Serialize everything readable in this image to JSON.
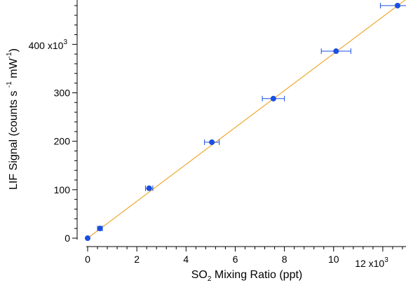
{
  "chart_data": {
    "type": "scatter",
    "xlabel": {
      "prefix": "SO",
      "subscript": "2",
      "suffix": " Mixing Ratio (ppt)"
    },
    "ylabel": {
      "prefix": "LIF Signal (counts s ",
      "sup1": "-1",
      "middle": " mW",
      "sup2": "-1",
      "suffix": ")"
    },
    "x_scale_label": {
      "base": "12 x10",
      "exp": "3"
    },
    "y_top_tick_label": {
      "base": "400 x10",
      "exp": "3"
    },
    "xlim": [
      0,
      13000
    ],
    "ylim": [
      0,
      480000
    ],
    "x_ticks": [
      {
        "value": 0,
        "label": "0"
      },
      {
        "value": 2000,
        "label": "2"
      },
      {
        "value": 4000,
        "label": "4"
      },
      {
        "value": 6000,
        "label": "6"
      },
      {
        "value": 8000,
        "label": "8"
      },
      {
        "value": 10000,
        "label": "10"
      }
    ],
    "y_ticks": [
      {
        "value": 0,
        "label": "0"
      },
      {
        "value": 100000,
        "label": "100"
      },
      {
        "value": 200000,
        "label": "200"
      },
      {
        "value": 300000,
        "label": "300"
      }
    ],
    "series": [
      {
        "marker_color": "#1a4fe0",
        "points": [
          {
            "x": 0,
            "y": 0,
            "xerr": 0
          },
          {
            "x": 500,
            "y": 20000,
            "xerr": 100
          },
          {
            "x": 2500,
            "y": 103000,
            "xerr": 150
          },
          {
            "x": 5050,
            "y": 198000,
            "xerr": 300
          },
          {
            "x": 7550,
            "y": 288000,
            "xerr": 450
          },
          {
            "x": 10100,
            "y": 386000,
            "xerr": 600
          },
          {
            "x": 12600,
            "y": 480000,
            "xerr": 700
          }
        ]
      }
    ],
    "fit_line": {
      "color": "#f0a830",
      "x": [
        0,
        13000
      ],
      "y": [
        0,
        495000
      ]
    },
    "grid": false
  }
}
